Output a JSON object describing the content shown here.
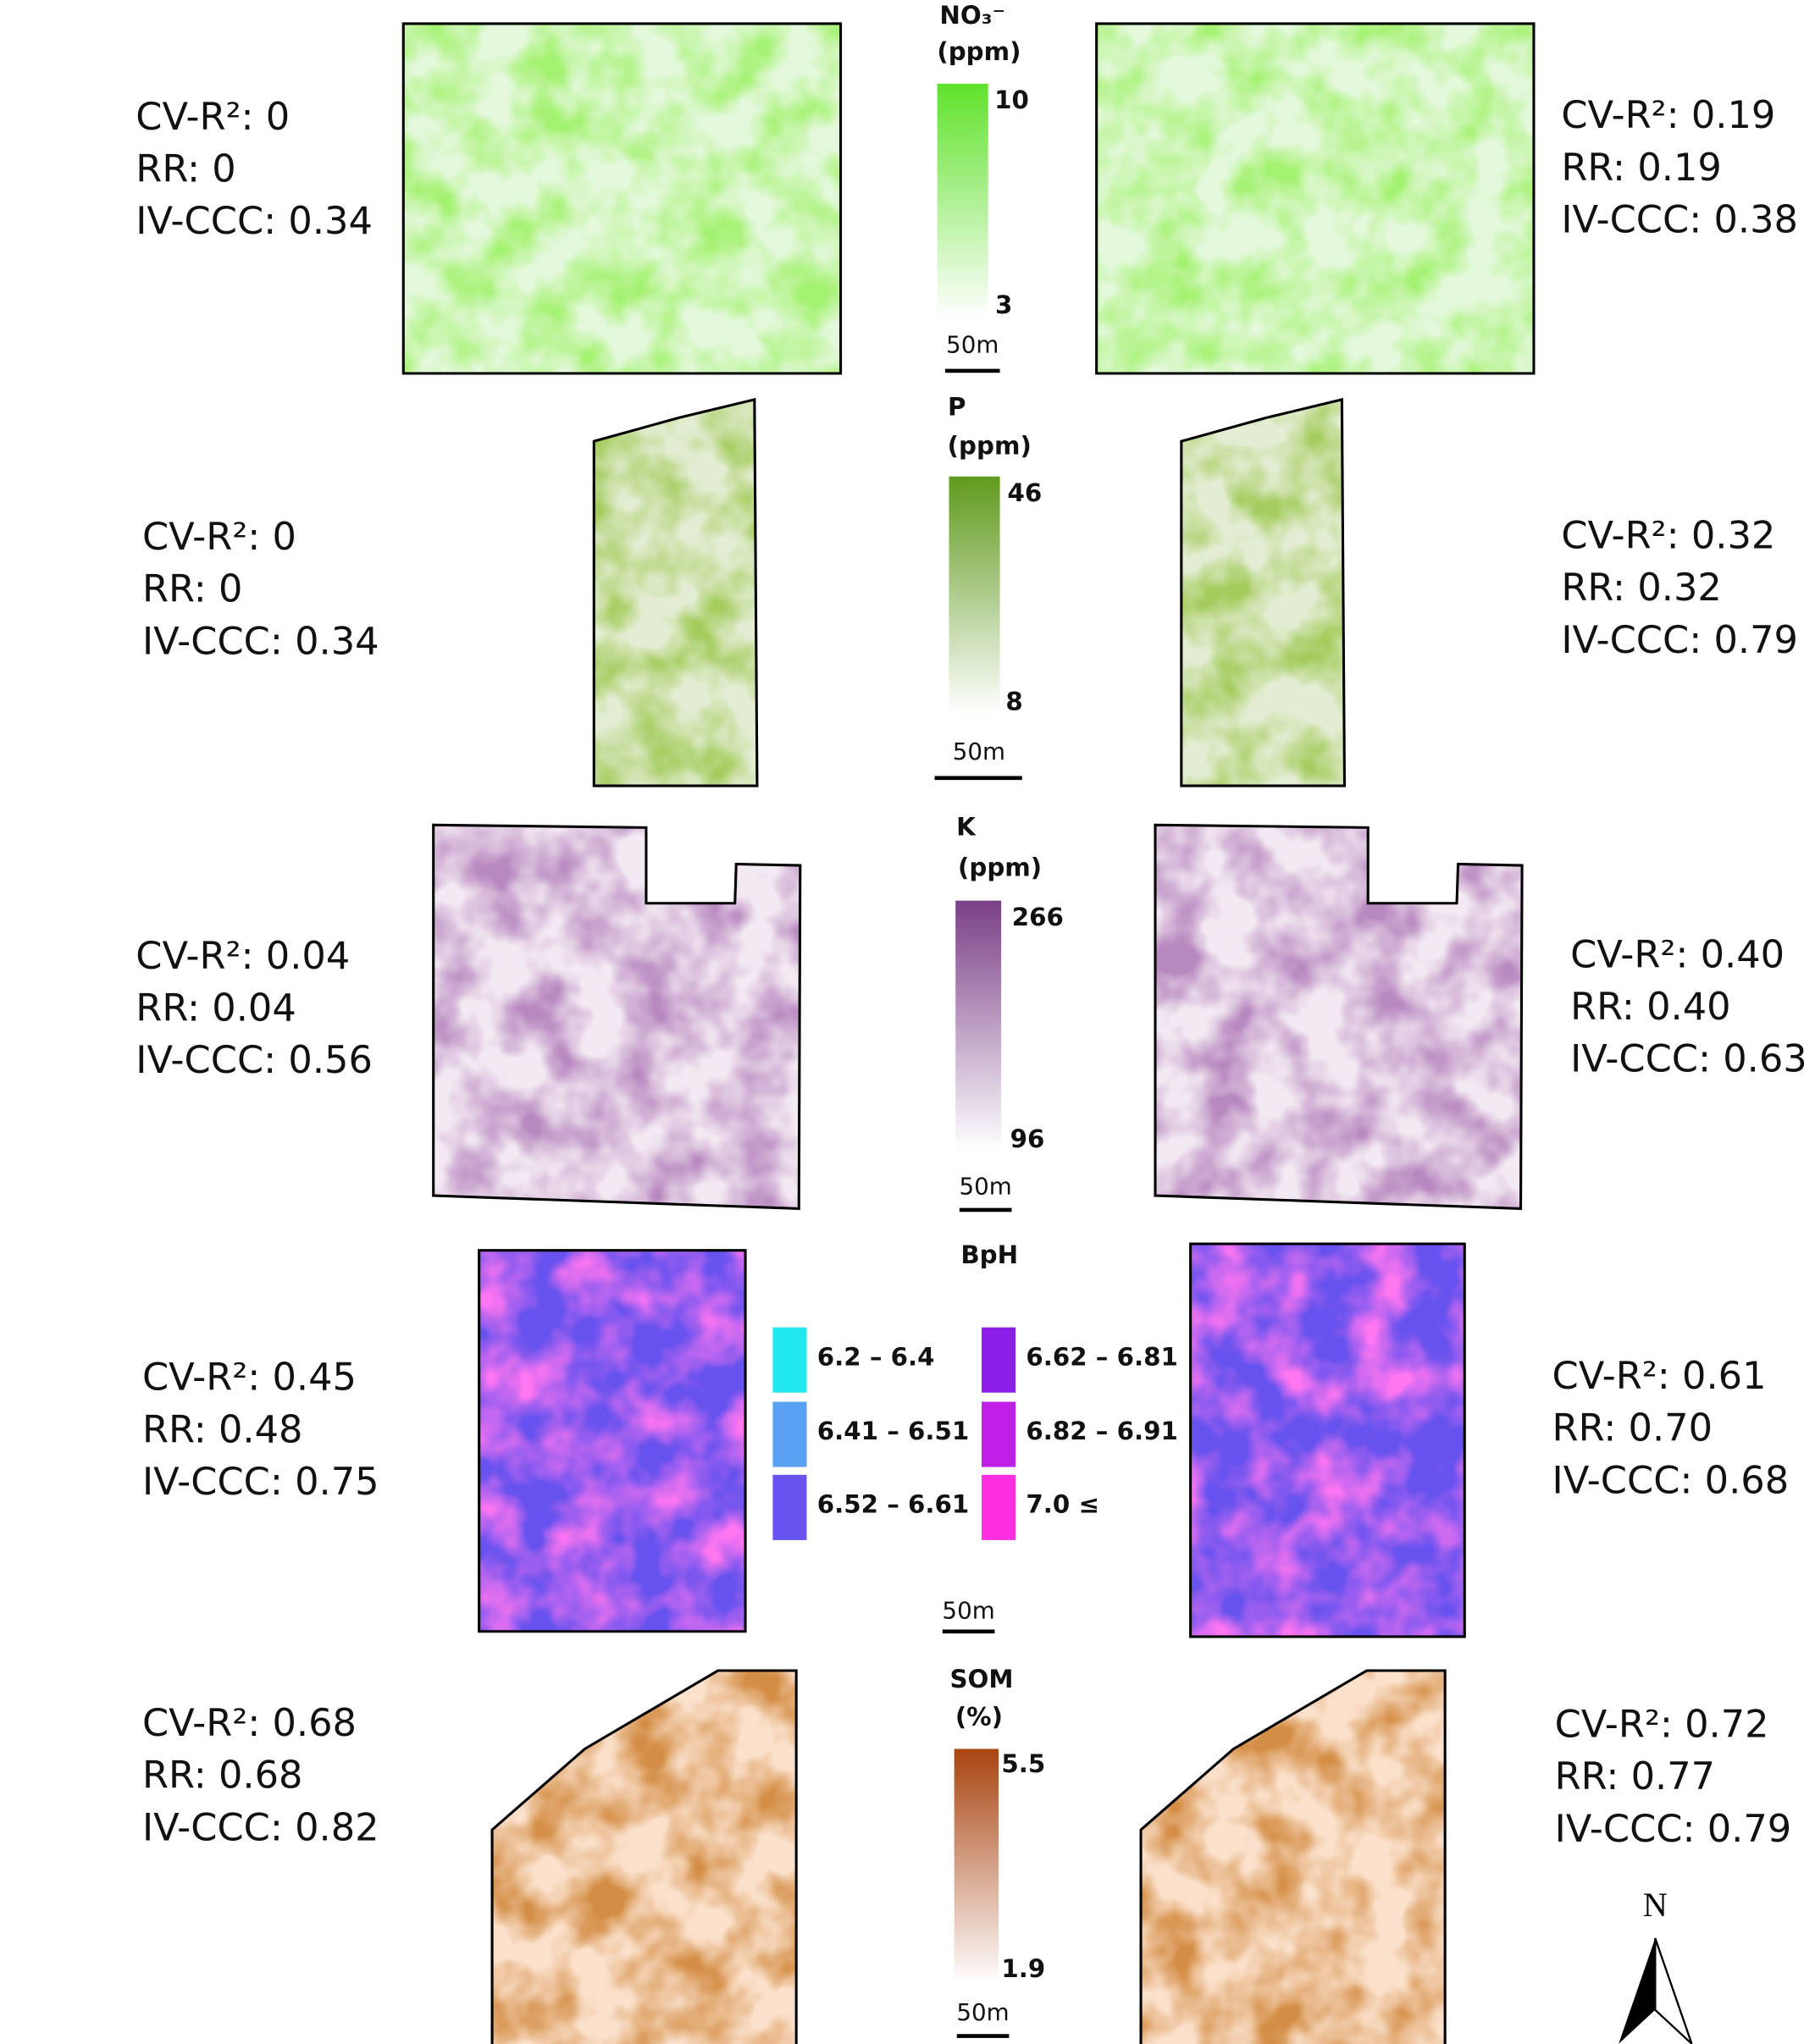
{
  "panels": [
    {
      "title": "NO₃⁻",
      "unit": "(ppm)",
      "legend_max": 10,
      "legend_min": 3,
      "scale": "50m",
      "left_stats": [
        "CV-R²: 0",
        "RR: 0",
        "IV-CCC: 0.34"
      ],
      "right_stats": [
        "CV-R²: 0.19",
        "RR: 0.19",
        "IV-CCC: 0.38"
      ]
    },
    {
      "title": "P",
      "unit": "(ppm)",
      "legend_max": 46,
      "legend_min": 8,
      "scale": "50m",
      "left_stats": [
        "CV-R²: 0",
        "RR: 0",
        "IV-CCC: 0.34"
      ],
      "right_stats": [
        "CV-R²: 0.32",
        "RR: 0.32",
        "IV-CCC: 0.79"
      ]
    },
    {
      "title": "K",
      "unit": "(ppm)",
      "legend_max": 266,
      "legend_min": 96,
      "scale": "50m",
      "left_stats": [
        "CV-R²: 0.04",
        "RR: 0.04",
        "IV-CCC: 0.56"
      ],
      "right_stats": [
        "CV-R²: 0.40",
        "RR: 0.40",
        "IV-CCC: 0.63"
      ]
    },
    {
      "title": "BpH",
      "classes": [
        "6.2 – 6.4",
        "6.41 – 6.51",
        "6.52 – 6.61",
        "6.62 – 6.81",
        "6.82 – 6.91",
        "7.0 ≤"
      ],
      "scale": "50m",
      "left_stats": [
        "CV-R²: 0.45",
        "RR: 0.48",
        "IV-CCC: 0.75"
      ],
      "right_stats": [
        "CV-R²: 0.61",
        "RR: 0.70",
        "IV-CCC: 0.68"
      ]
    },
    {
      "title": "SOM",
      "unit": "(%)",
      "legend_max": 5.5,
      "legend_min": 1.9,
      "scale": "50m",
      "left_stats": [
        "CV-R²: 0.68",
        "RR: 0.68",
        "IV-CCC: 0.82"
      ],
      "right_stats": [
        "CV-R²: 0.72",
        "RR: 0.77",
        "IV-CCC: 0.79"
      ]
    }
  ],
  "north": "N"
}
